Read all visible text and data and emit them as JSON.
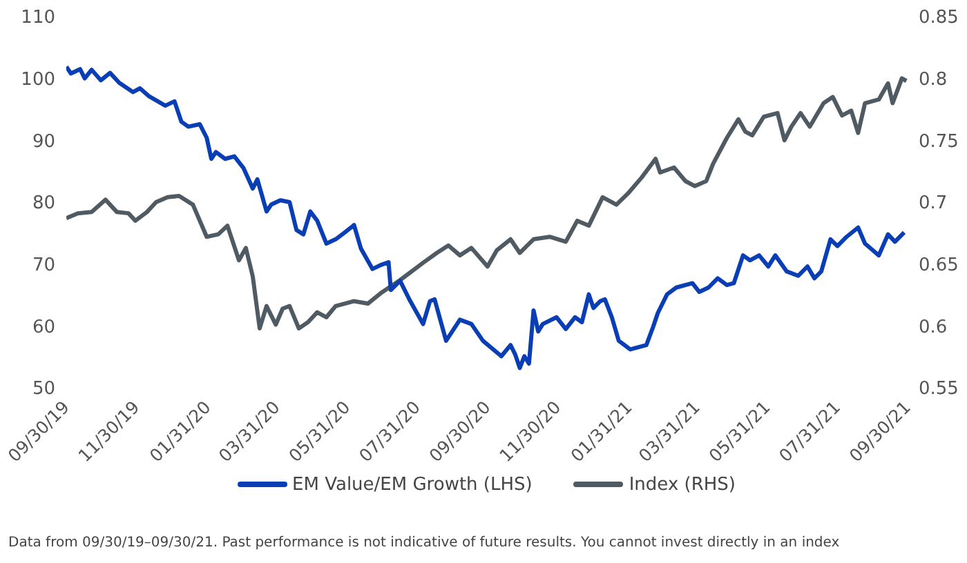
{
  "chart_data": {
    "type": "line",
    "annotations": [
      "Data from 09/30/19–09/30/21. Past performance is not indicative of future results. You cannot invest directly in an index"
    ],
    "xlim": [
      "2019-09-30",
      "2021-09-30"
    ],
    "xticks": [
      {
        "value": "2019-09-30",
        "label": "09/30/19"
      },
      {
        "value": "2019-11-30",
        "label": "11/30/19"
      },
      {
        "value": "2020-01-31",
        "label": "01/31/20"
      },
      {
        "value": "2020-03-31",
        "label": "03/31/20"
      },
      {
        "value": "2020-05-31",
        "label": "05/31/20"
      },
      {
        "value": "2020-07-31",
        "label": "07/31/20"
      },
      {
        "value": "2020-09-30",
        "label": "09/30/20"
      },
      {
        "value": "2020-11-30",
        "label": "11/30/20"
      },
      {
        "value": "2021-01-31",
        "label": "01/31/21"
      },
      {
        "value": "2021-03-31",
        "label": "03/31/21"
      },
      {
        "value": "2021-05-31",
        "label": "05/31/21"
      },
      {
        "value": "2021-07-31",
        "label": "07/31/21"
      },
      {
        "value": "2021-09-30",
        "label": "09/30/21"
      }
    ],
    "ylim": [
      50,
      110
    ],
    "yticks": [
      50,
      60,
      70,
      80,
      90,
      100,
      110
    ],
    "y2lim": [
      0.55,
      0.85
    ],
    "y2ticks": [
      0.55,
      0.6,
      0.65,
      0.7,
      0.75,
      0.8,
      0.85
    ],
    "grid": false,
    "legend": "bottom",
    "marker": "none",
    "line_style": "solid",
    "series": [
      {
        "name": "Index (RHS)",
        "color": "#4f5a63",
        "axis": "y2",
        "x": [
          "2019-09-30",
          "2019-10-10",
          "2019-10-22",
          "2019-11-03",
          "2019-11-13",
          "2019-11-23",
          "2019-11-29",
          "2019-12-09",
          "2019-12-17",
          "2019-12-27",
          "2020-01-06",
          "2020-01-18",
          "2020-01-30",
          "2020-02-09",
          "2020-02-17",
          "2020-02-27",
          "2020-03-04",
          "2020-03-10",
          "2020-03-16",
          "2020-03-22",
          "2020-03-30",
          "2020-04-05",
          "2020-04-11",
          "2020-04-19",
          "2020-04-27",
          "2020-05-05",
          "2020-05-13",
          "2020-05-21",
          "2020-06-06",
          "2020-06-18",
          "2020-06-30",
          "2020-07-16",
          "2020-08-05",
          "2020-08-17",
          "2020-08-27",
          "2020-09-06",
          "2020-09-16",
          "2020-09-30",
          "2020-10-08",
          "2020-10-20",
          "2020-10-28",
          "2020-11-09",
          "2020-11-23",
          "2020-12-07",
          "2020-12-17",
          "2020-12-27",
          "2021-01-08",
          "2021-01-20",
          "2021-01-30",
          "2021-02-11",
          "2021-02-23",
          "2021-02-27",
          "2021-03-11",
          "2021-03-21",
          "2021-03-29",
          "2021-04-08",
          "2021-04-14",
          "2021-04-26",
          "2021-05-06",
          "2021-05-12",
          "2021-05-18",
          "2021-05-28",
          "2021-06-09",
          "2021-06-15",
          "2021-06-21",
          "2021-06-29",
          "2021-07-07",
          "2021-07-19",
          "2021-07-27",
          "2021-08-04",
          "2021-08-12",
          "2021-08-18",
          "2021-08-24",
          "2021-09-05",
          "2021-09-13",
          "2021-09-17",
          "2021-09-25",
          "2021-09-29"
        ],
        "values": [
          0.687,
          0.691,
          0.692,
          0.702,
          0.692,
          0.691,
          0.685,
          0.692,
          0.7,
          0.704,
          0.705,
          0.698,
          0.672,
          0.674,
          0.681,
          0.653,
          0.663,
          0.64,
          0.598,
          0.616,
          0.601,
          0.614,
          0.616,
          0.598,
          0.603,
          0.611,
          0.607,
          0.616,
          0.62,
          0.618,
          0.627,
          0.637,
          0.651,
          0.659,
          0.665,
          0.657,
          0.663,
          0.648,
          0.661,
          0.67,
          0.659,
          0.67,
          0.672,
          0.668,
          0.685,
          0.681,
          0.704,
          0.698,
          0.707,
          0.72,
          0.735,
          0.724,
          0.728,
          0.717,
          0.713,
          0.717,
          0.731,
          0.752,
          0.767,
          0.757,
          0.754,
          0.769,
          0.772,
          0.75,
          0.761,
          0.772,
          0.761,
          0.78,
          0.785,
          0.77,
          0.774,
          0.756,
          0.78,
          0.783,
          0.796,
          0.78,
          0.8,
          0.798
        ]
      },
      {
        "name": "EM Value/EM Growth (LHS)",
        "color": "#0a3eb4",
        "axis": "y",
        "x": [
          "2019-09-30",
          "2019-10-04",
          "2019-10-12",
          "2019-10-16",
          "2019-10-22",
          "2019-10-30",
          "2019-11-07",
          "2019-11-15",
          "2019-11-27",
          "2019-12-03",
          "2019-12-11",
          "2019-12-25",
          "2020-01-02",
          "2020-01-08",
          "2020-01-14",
          "2020-01-24",
          "2020-01-30",
          "2020-02-03",
          "2020-02-07",
          "2020-02-15",
          "2020-02-23",
          "2020-03-02",
          "2020-03-10",
          "2020-03-14",
          "2020-03-22",
          "2020-03-26",
          "2020-04-03",
          "2020-04-11",
          "2020-04-17",
          "2020-04-23",
          "2020-04-29",
          "2020-05-05",
          "2020-05-13",
          "2020-05-21",
          "2020-05-29",
          "2020-06-06",
          "2020-06-12",
          "2020-06-22",
          "2020-06-30",
          "2020-07-06",
          "2020-07-08",
          "2020-07-16",
          "2020-07-24",
          "2020-08-05",
          "2020-08-11",
          "2020-08-15",
          "2020-08-25",
          "2020-09-06",
          "2020-09-16",
          "2020-09-26",
          "2020-10-12",
          "2020-10-20",
          "2020-10-24",
          "2020-10-28",
          "2020-11-01",
          "2020-11-05",
          "2020-11-09",
          "2020-11-13",
          "2020-11-17",
          "2020-11-29",
          "2020-12-07",
          "2020-12-15",
          "2020-12-21",
          "2020-12-27",
          "2020-12-31",
          "2021-01-06",
          "2021-01-10",
          "2021-01-16",
          "2021-01-22",
          "2021-02-01",
          "2021-02-15",
          "2021-02-21",
          "2021-02-25",
          "2021-03-05",
          "2021-03-13",
          "2021-03-27",
          "2021-04-02",
          "2021-04-10",
          "2021-04-18",
          "2021-04-26",
          "2021-05-02",
          "2021-05-10",
          "2021-05-16",
          "2021-05-24",
          "2021-06-01",
          "2021-06-07",
          "2021-06-17",
          "2021-06-27",
          "2021-07-05",
          "2021-07-11",
          "2021-07-17",
          "2021-07-25",
          "2021-07-31",
          "2021-08-08",
          "2021-08-18",
          "2021-08-24",
          "2021-09-05",
          "2021-09-13",
          "2021-09-19",
          "2021-09-27"
        ],
        "values": [
          101.9,
          100.8,
          101.5,
          100.0,
          101.4,
          99.7,
          100.9,
          99.3,
          97.8,
          98.4,
          97.1,
          95.6,
          96.3,
          93.0,
          92.2,
          92.6,
          90.4,
          87.0,
          88.1,
          87.0,
          87.4,
          85.5,
          82.2,
          83.7,
          78.5,
          79.6,
          80.3,
          80.0,
          75.5,
          74.8,
          78.5,
          77.0,
          73.3,
          74.0,
          75.1,
          76.3,
          72.5,
          69.2,
          69.9,
          70.3,
          65.8,
          67.3,
          64.3,
          60.3,
          64.0,
          64.3,
          57.6,
          61.0,
          60.3,
          57.6,
          55.1,
          56.9,
          55.4,
          53.2,
          55.1,
          53.9,
          62.5,
          59.1,
          60.3,
          61.4,
          59.5,
          61.4,
          60.6,
          65.1,
          62.9,
          64.0,
          64.3,
          61.4,
          57.6,
          56.2,
          56.9,
          59.9,
          62.1,
          65.1,
          66.2,
          66.9,
          65.5,
          66.2,
          67.7,
          66.6,
          66.9,
          71.4,
          70.6,
          71.4,
          69.6,
          71.4,
          68.8,
          68.1,
          69.6,
          67.7,
          68.8,
          74.0,
          72.9,
          74.4,
          75.9,
          73.3,
          71.4,
          74.8,
          73.6,
          75.1
        ]
      }
    ]
  }
}
